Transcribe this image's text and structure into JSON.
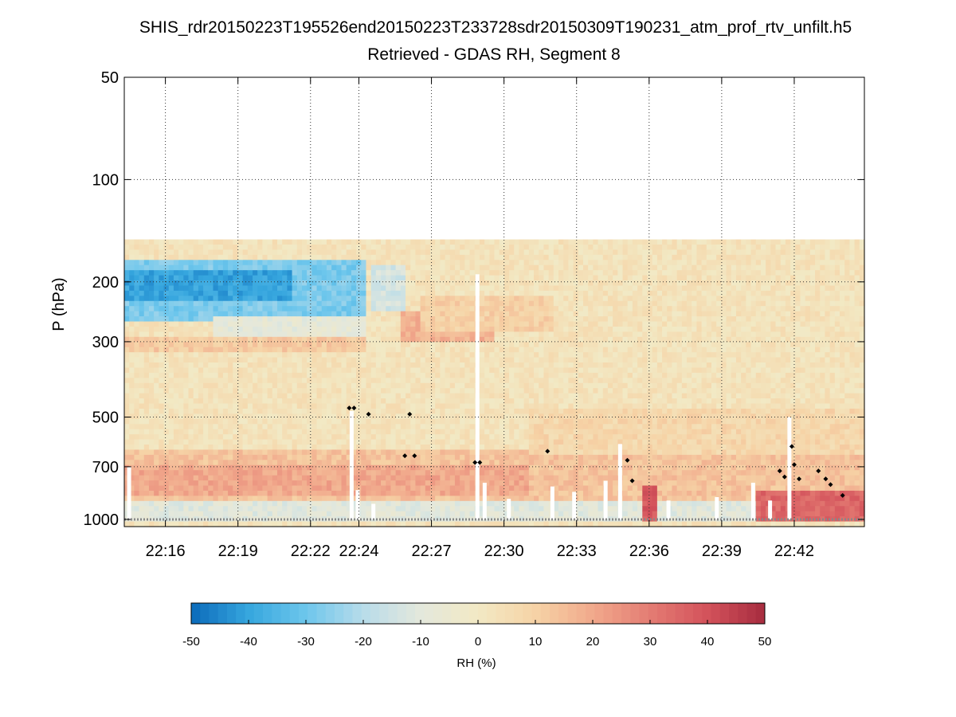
{
  "chart_data": {
    "type": "heatmap",
    "title": "SHIS_rdr20150223T195526end20150223T233728sdr20150309T190231_atm_prof_rtv_unfilt.h5",
    "subtitle": "Retrieved - GDAS RH, Segment 8",
    "ylabel": "P (hPa)",
    "yscale": "log",
    "yreversed": true,
    "ylim": [
      50,
      1050
    ],
    "yticks": [
      50,
      100,
      200,
      300,
      500,
      700,
      1000
    ],
    "ytick_labels": [
      "50",
      "100",
      "200",
      "300",
      "500",
      "700",
      "1000"
    ],
    "xlim_minutes": [
      1334.3,
      1364.9
    ],
    "xticks_minutes": [
      1336,
      1339,
      1342,
      1344,
      1347,
      1350,
      1353,
      1356,
      1359,
      1362
    ],
    "xtick_labels": [
      "22:16",
      "22:19",
      "22:22",
      "22:24",
      "22:27",
      "22:30",
      "22:33",
      "22:36",
      "22:39",
      "22:42"
    ],
    "grid": "dotted",
    "data_top_pressure": 150,
    "surface_pressure": 1000,
    "colorbar": {
      "label": "RH (%)",
      "vmin": -50,
      "vmax": 50,
      "ticks": [
        -50,
        -40,
        -30,
        -20,
        -10,
        0,
        10,
        20,
        30,
        40,
        50
      ],
      "tick_labels": [
        "-50",
        "-40",
        "-30",
        "-20",
        "-10",
        "0",
        "10",
        "20",
        "30",
        "40",
        "50"
      ],
      "colormap": "blue-white-red",
      "color_stops": [
        "#0b6aba",
        "#36a6de",
        "#6dc6ec",
        "#b8dcea",
        "#e4e8dc",
        "#f2e9c4",
        "#f6d3a6",
        "#f1a98c",
        "#e47c73",
        "#d3525b",
        "#a72c3f"
      ]
    },
    "regions": [
      {
        "t0": 1334.3,
        "t1": 1344.2,
        "p_top": 170,
        "p_bot": 260,
        "rh": -28
      },
      {
        "t0": 1334.3,
        "t1": 1341.2,
        "p_top": 185,
        "p_bot": 225,
        "rh": -40
      },
      {
        "t0": 1344.4,
        "t1": 1346.0,
        "p_top": 180,
        "p_bot": 240,
        "rh": -14
      },
      {
        "t0": 1338.0,
        "t1": 1344.2,
        "p_top": 255,
        "p_bot": 290,
        "rh": -8
      },
      {
        "t0": 1334.3,
        "t1": 1344.2,
        "p_top": 295,
        "p_bot": 320,
        "rh": 12
      },
      {
        "t0": 1345.7,
        "t1": 1349.5,
        "p_top": 240,
        "p_bot": 300,
        "rh": 18
      },
      {
        "t0": 1346.5,
        "t1": 1352.0,
        "p_top": 220,
        "p_bot": 280,
        "rh": 10
      },
      {
        "t0": 1334.3,
        "t1": 1364.9,
        "p_top": 620,
        "p_bot": 880,
        "rh": 14
      },
      {
        "t0": 1334.3,
        "t1": 1351.0,
        "p_top": 700,
        "p_bot": 860,
        "rh": 20
      },
      {
        "t0": 1351.0,
        "t1": 1364.9,
        "p_top": 470,
        "p_bot": 640,
        "rh": 8
      },
      {
        "t0": 1334.3,
        "t1": 1364.9,
        "p_top": 880,
        "p_bot": 1000,
        "rh": -10
      },
      {
        "t0": 1355.7,
        "t1": 1356.3,
        "p_top": 800,
        "p_bot": 1000,
        "rh": 38
      },
      {
        "t0": 1360.5,
        "t1": 1364.9,
        "p_top": 820,
        "p_bot": 1000,
        "rh": 35
      }
    ],
    "markers": [
      {
        "t": 1343.6,
        "p": 470
      },
      {
        "t": 1343.8,
        "p": 470
      },
      {
        "t": 1344.4,
        "p": 490
      },
      {
        "t": 1345.9,
        "p": 650
      },
      {
        "t": 1346.1,
        "p": 490
      },
      {
        "t": 1346.3,
        "p": 650
      },
      {
        "t": 1348.8,
        "p": 680
      },
      {
        "t": 1349.0,
        "p": 680
      },
      {
        "t": 1351.8,
        "p": 630
      },
      {
        "t": 1355.1,
        "p": 670
      },
      {
        "t": 1355.3,
        "p": 770
      },
      {
        "t": 1361.4,
        "p": 720
      },
      {
        "t": 1361.6,
        "p": 750
      },
      {
        "t": 1361.9,
        "p": 610
      },
      {
        "t": 1362.0,
        "p": 690
      },
      {
        "t": 1362.2,
        "p": 760
      },
      {
        "t": 1363.0,
        "p": 720
      },
      {
        "t": 1363.3,
        "p": 760
      },
      {
        "t": 1363.5,
        "p": 790
      },
      {
        "t": 1364.0,
        "p": 850
      }
    ]
  }
}
